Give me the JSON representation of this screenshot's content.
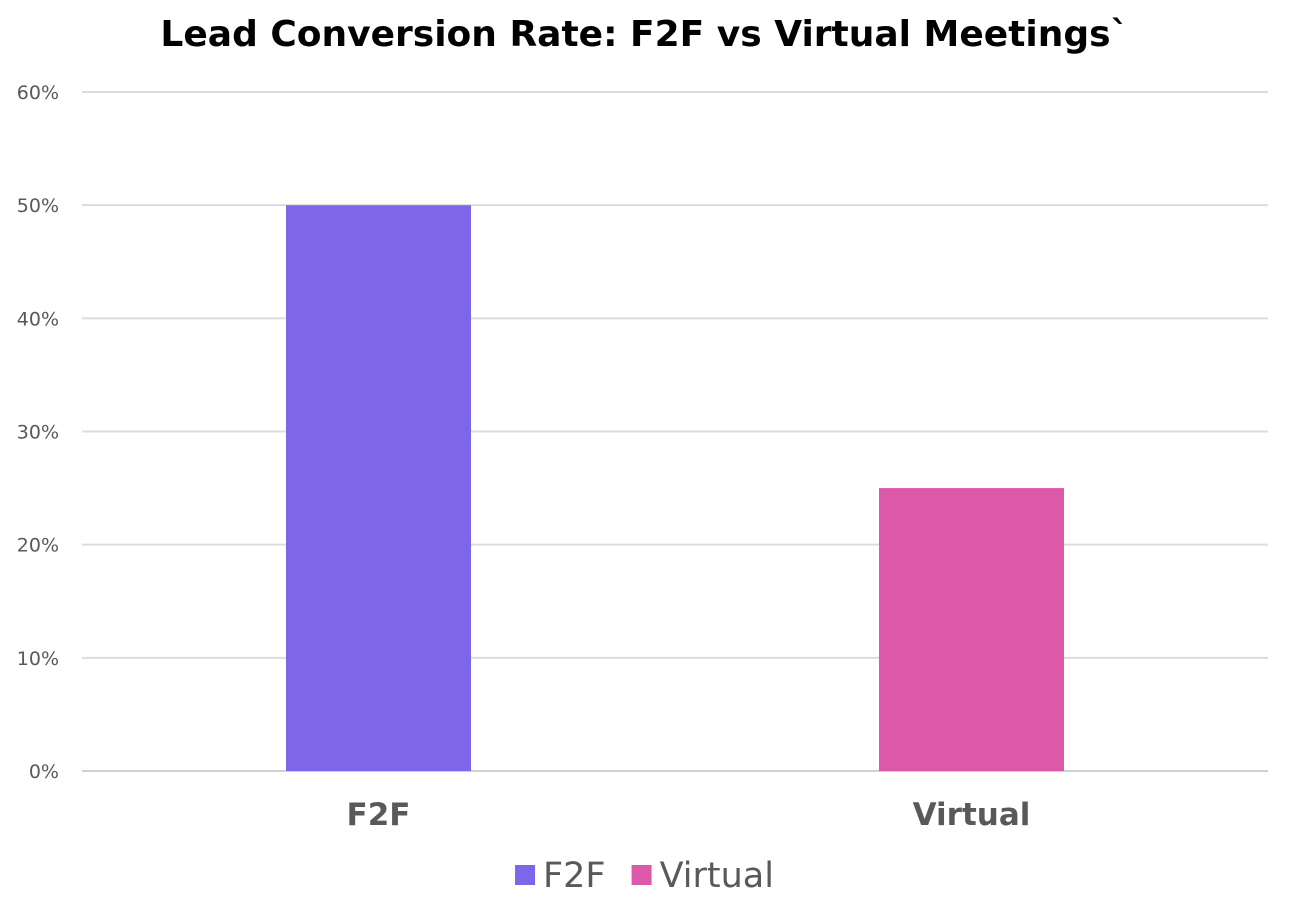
{
  "chart_data": {
    "type": "bar",
    "title": "Lead Conversion Rate: F2F vs Virtual Meetings`",
    "categories": [
      "F2F",
      "Virtual"
    ],
    "values": [
      50,
      25
    ],
    "unit": "%",
    "colors": [
      "#7e66eb",
      "#dd58a8"
    ],
    "ylim": [
      0,
      60
    ],
    "y_ticks": [
      0,
      10,
      20,
      30,
      40,
      50,
      60
    ],
    "y_tick_labels": [
      "0%",
      "10%",
      "20%",
      "30%",
      "40%",
      "50%",
      "60%"
    ],
    "grid": true,
    "legend": {
      "position": "bottom",
      "entries": [
        {
          "label": "F2F",
          "color": "#7e66eb"
        },
        {
          "label": "Virtual",
          "color": "#dd58a8"
        }
      ]
    }
  }
}
